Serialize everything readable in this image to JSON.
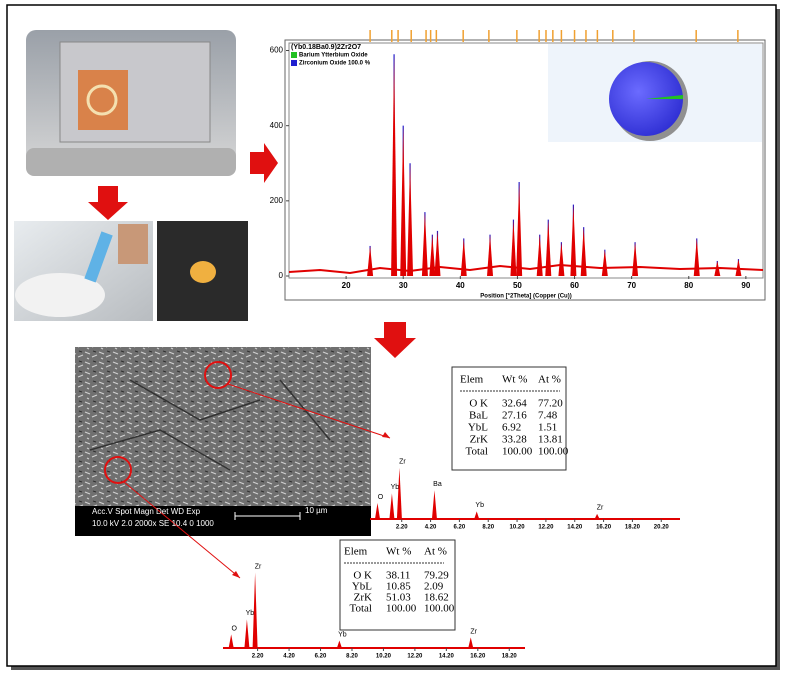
{
  "chart_data": [
    {
      "type": "spectrum",
      "title": "(Yb0.18Ba0.9)2Zr2O7",
      "x_label": "Position [°2Theta] (Copper (Cu))",
      "color": "#e00000",
      "legend": [
        {
          "name": "Barium Ytterbium Oxide",
          "color": "#22c022"
        },
        {
          "name": "Zirconium Oxide 100.0 %",
          "color": "#2020d0"
        }
      ],
      "x": [
        24.2,
        28.4,
        30.0,
        31.2,
        33.8,
        35.1,
        36.0,
        40.6,
        45.2,
        49.3,
        50.3,
        53.9,
        55.4,
        57.7,
        59.8,
        61.6,
        65.3,
        70.6,
        81.4,
        85.0,
        88.7
      ],
      "values": [
        80,
        590,
        400,
        300,
        170,
        110,
        120,
        100,
        110,
        150,
        250,
        110,
        150,
        90,
        190,
        130,
        70,
        90,
        100,
        40,
        45
      ],
      "reference_x": [
        24.2,
        28.0,
        29.1,
        31.4,
        34.0,
        34.8,
        35.8,
        40.5,
        45.0,
        49.9,
        53.8,
        55.0,
        56.2,
        57.7,
        60.0,
        62.0,
        64.0,
        66.7,
        70.4,
        81.3,
        88.6
      ],
      "xlim": [
        10,
        93
      ],
      "ylim": [
        0,
        620
      ],
      "xticks": [
        20,
        30,
        40,
        50,
        60,
        70,
        80,
        90
      ],
      "yticks": [
        0,
        200,
        400,
        600
      ]
    },
    {
      "type": "spectrum",
      "labels": [
        "O",
        "Yb",
        "Zr",
        "Ba",
        "Yb",
        "Zr"
      ],
      "x": [
        0.52,
        1.52,
        2.04,
        4.47,
        7.4,
        15.75
      ],
      "values": [
        25,
        40,
        80,
        45,
        12,
        8
      ],
      "xlim": [
        0,
        21.5
      ],
      "ylim": [
        0,
        100
      ],
      "xticks": [
        {
          "value": 2.2,
          "label": "2.20"
        },
        {
          "value": 4.2,
          "label": "4.20"
        },
        {
          "value": 6.2,
          "label": "6.20"
        },
        {
          "value": 8.2,
          "label": "8.20"
        },
        {
          "value": 10.2,
          "label": "10.20"
        },
        {
          "value": 12.2,
          "label": "12.20"
        },
        {
          "value": 14.2,
          "label": "14.20"
        },
        {
          "value": 16.2,
          "label": "16.20"
        },
        {
          "value": 18.2,
          "label": "18.20"
        },
        {
          "value": 20.2,
          "label": "20.20"
        }
      ]
    },
    {
      "type": "spectrum",
      "labels": [
        "O",
        "Yb",
        "Zr",
        "Yb",
        "Zr"
      ],
      "x": [
        0.52,
        1.52,
        2.04,
        7.4,
        15.75
      ],
      "values": [
        18,
        38,
        100,
        10,
        14
      ],
      "xlim": [
        0,
        19.2
      ],
      "ylim": [
        0,
        110
      ],
      "xticks": [
        {
          "value": 2.2,
          "label": "2.20"
        },
        {
          "value": 4.2,
          "label": "4.20"
        },
        {
          "value": 6.2,
          "label": "6.20"
        },
        {
          "value": 8.2,
          "label": "8.20"
        },
        {
          "value": 10.2,
          "label": "10.20"
        },
        {
          "value": 12.2,
          "label": "12.20"
        },
        {
          "value": 14.2,
          "label": "14.20"
        },
        {
          "value": 16.2,
          "label": "16.20"
        },
        {
          "value": 18.2,
          "label": "18.20"
        }
      ]
    }
  ],
  "sem": {
    "header": "Acc.V  Spot Magn   Det  WD  Exp",
    "values": "10.0 kV 2.0  2000x   SE  10.4  0      1000",
    "scale": "10 µm"
  },
  "tables": [
    {
      "header": [
        "Elem",
        "Wt %",
        "At %"
      ],
      "rows": [
        [
          "O K",
          "32.64",
          "77.20"
        ],
        [
          "BaL",
          "27.16",
          "7.48"
        ],
        [
          "YbL",
          "6.92",
          "1.51"
        ],
        [
          "ZrK",
          "33.28",
          "13.81"
        ],
        [
          "Total",
          "100.00",
          "100.00"
        ]
      ]
    },
    {
      "header": [
        "Elem",
        "Wt %",
        "At %"
      ],
      "rows": [
        [
          "O K",
          "38.11",
          "79.29"
        ],
        [
          "YbL",
          "10.85",
          "2.09"
        ],
        [
          "ZrK",
          "51.03",
          "18.62"
        ],
        [
          "Total",
          "100.00",
          "100.00"
        ]
      ]
    }
  ]
}
